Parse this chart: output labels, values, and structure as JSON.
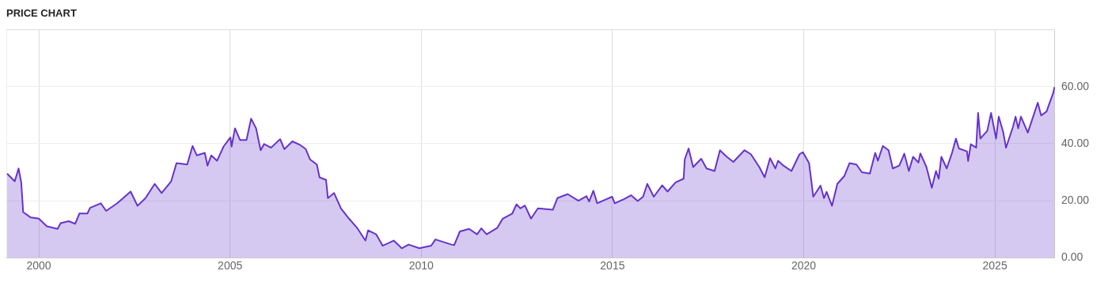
{
  "chart_data": {
    "type": "area",
    "title": "PRICE CHART",
    "color": "#6633cc",
    "marker": "none",
    "grid": true,
    "xlim": [
      1999.15,
      2026.57
    ],
    "xticks": [
      2000,
      2005,
      2010,
      2015,
      2020,
      2025
    ],
    "ylim": [
      0,
      80
    ],
    "yticks": [
      {
        "value": 0,
        "label": "0.00"
      },
      {
        "value": 20,
        "label": "20.00"
      },
      {
        "value": 40,
        "label": "40.00"
      },
      {
        "value": 60,
        "label": "60.00"
      }
    ],
    "x": [
      1999.17,
      1999.37,
      1999.47,
      1999.54,
      1999.59,
      1999.79,
      2000.0,
      2000.21,
      2000.49,
      2000.57,
      2000.78,
      2000.95,
      2001.06,
      2001.27,
      2001.34,
      2001.62,
      2001.76,
      2002.05,
      2002.4,
      2002.58,
      2002.79,
      2003.03,
      2003.21,
      2003.46,
      2003.6,
      2003.88,
      2004.02,
      2004.13,
      2004.34,
      2004.41,
      2004.51,
      2004.66,
      2004.83,
      2005.01,
      2005.04,
      2005.13,
      2005.26,
      2005.43,
      2005.55,
      2005.68,
      2005.8,
      2005.89,
      2006.07,
      2006.31,
      2006.42,
      2006.63,
      2006.84,
      2006.98,
      2007.09,
      2007.27,
      2007.34,
      2007.51,
      2007.56,
      2007.72,
      2007.9,
      2008.11,
      2008.32,
      2008.54,
      2008.61,
      2008.82,
      2008.99,
      2009.28,
      2009.49,
      2009.67,
      2009.95,
      2010.26,
      2010.37,
      2010.79,
      2010.86,
      2011.01,
      2011.25,
      2011.46,
      2011.57,
      2011.71,
      2011.99,
      2012.13,
      2012.38,
      2012.49,
      2012.59,
      2012.71,
      2012.87,
      2013.05,
      2013.44,
      2013.56,
      2013.83,
      2014.11,
      2014.32,
      2014.39,
      2014.5,
      2014.6,
      2014.99,
      2015.06,
      2015.31,
      2015.49,
      2015.66,
      2015.8,
      2015.91,
      2016.08,
      2016.3,
      2016.44,
      2016.65,
      2016.86,
      2016.89,
      2016.99,
      2017.11,
      2017.32,
      2017.46,
      2017.67,
      2017.81,
      2017.99,
      2018.16,
      2018.45,
      2018.62,
      2018.84,
      2018.98,
      2019.12,
      2019.26,
      2019.33,
      2019.47,
      2019.68,
      2019.89,
      2019.98,
      2020.14,
      2020.21,
      2020.25,
      2020.44,
      2020.53,
      2020.6,
      2020.74,
      2020.88,
      2021.06,
      2021.2,
      2021.38,
      2021.52,
      2021.73,
      2021.87,
      2021.94,
      2022.07,
      2022.22,
      2022.33,
      2022.5,
      2022.63,
      2022.75,
      2022.86,
      2023.0,
      2023.05,
      2023.21,
      2023.35,
      2023.46,
      2023.53,
      2023.6,
      2023.74,
      2023.88,
      2023.98,
      2024.06,
      2024.27,
      2024.3,
      2024.37,
      2024.51,
      2024.56,
      2024.62,
      2024.8,
      2024.9,
      2025.03,
      2025.1,
      2025.22,
      2025.29,
      2025.47,
      2025.54,
      2025.61,
      2025.68,
      2025.86,
      2026.0,
      2026.12,
      2026.21,
      2026.35,
      2026.52,
      2026.56
    ],
    "values": [
      29.5,
      26.8,
      31.3,
      26.4,
      16.0,
      14.1,
      13.7,
      11.0,
      10.1,
      12.1,
      12.8,
      11.9,
      15.5,
      15.5,
      17.5,
      19.1,
      16.4,
      19.1,
      23.2,
      18.2,
      20.9,
      25.9,
      22.7,
      26.8,
      33.2,
      32.7,
      39.2,
      35.9,
      36.8,
      32.3,
      35.9,
      34.0,
      39.0,
      42.2,
      39.0,
      45.4,
      41.3,
      41.3,
      48.8,
      45.4,
      37.7,
      39.9,
      38.6,
      41.6,
      38.1,
      40.8,
      39.5,
      38.1,
      34.5,
      32.7,
      28.2,
      27.3,
      20.9,
      22.7,
      17.3,
      13.7,
      10.5,
      6.0,
      9.6,
      8.2,
      4.2,
      6.0,
      3.3,
      4.6,
      3.3,
      4.2,
      6.4,
      4.6,
      4.4,
      9.2,
      10.1,
      8.2,
      10.3,
      8.2,
      10.5,
      13.7,
      15.5,
      18.7,
      17.3,
      18.3,
      13.7,
      17.3,
      16.8,
      20.9,
      22.3,
      20.0,
      21.6,
      19.7,
      23.5,
      19.1,
      21.4,
      19.1,
      20.6,
      21.9,
      19.9,
      21.4,
      25.9,
      21.4,
      25.4,
      23.2,
      26.4,
      27.7,
      34.5,
      38.3,
      31.8,
      34.7,
      31.3,
      30.4,
      37.7,
      35.4,
      33.6,
      37.7,
      36.3,
      31.8,
      28.2,
      34.9,
      31.3,
      34.0,
      32.3,
      30.4,
      36.3,
      37.0,
      33.2,
      25.9,
      21.4,
      25.3,
      20.9,
      23.1,
      18.2,
      25.9,
      28.6,
      33.2,
      32.7,
      30.0,
      29.5,
      36.8,
      34.0,
      39.2,
      37.7,
      31.3,
      32.3,
      36.5,
      30.4,
      35.4,
      33.4,
      36.6,
      31.8,
      24.5,
      30.4,
      27.7,
      35.4,
      31.3,
      36.8,
      41.8,
      38.3,
      37.3,
      33.9,
      39.8,
      38.6,
      50.8,
      41.8,
      44.5,
      50.8,
      41.8,
      49.5,
      43.9,
      38.6,
      45.8,
      49.5,
      45.4,
      49.5,
      43.9,
      49.5,
      54.4,
      49.9,
      51.3,
      57.6,
      59.9
    ]
  }
}
